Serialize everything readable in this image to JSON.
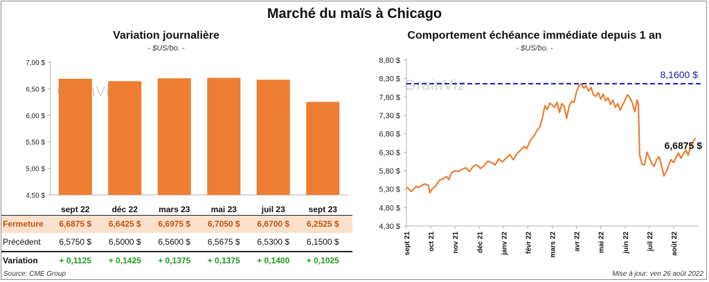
{
  "page_title": "Marché du maïs à Chicago",
  "watermark": "GrainViz",
  "source": "Source: CME Group",
  "updated": "Mise à jour: ven 26 août 2022",
  "chart_data": [
    {
      "type": "bar",
      "title": "Variation journalière",
      "subtitle": "- $US/bo. -",
      "categories": [
        "sept 22",
        "déc 22",
        "mars 23",
        "mai 23",
        "juil 23",
        "sept 23"
      ],
      "values": [
        6.6875,
        6.6425,
        6.6975,
        6.705,
        6.67,
        6.2525
      ],
      "ylim": [
        4.5,
        7.0
      ],
      "yticks": [
        "4,50 $",
        "5,00 $",
        "5,50 $",
        "6,00 $",
        "6,50 $",
        "7,00 $"
      ],
      "bar_color": "#ED7D31",
      "table": {
        "rows": [
          {
            "label": "Fermeture",
            "cells": [
              "6,6875  $",
              "6,6425  $",
              "6,6975  $",
              "6,7050  $",
              "6,6700  $",
              "6,2525  $"
            ]
          },
          {
            "label": "Précédent",
            "cells": [
              "6,5750  $",
              "6,5000  $",
              "6,5600  $",
              "6,5675  $",
              "6,5300  $",
              "6,1500  $"
            ]
          },
          {
            "label": "Variation",
            "cells": [
              "+ 0,1125",
              "+ 0,1425",
              "+ 0,1375",
              "+ 0,1375",
              "+ 0,1400",
              "+ 0,1025"
            ]
          }
        ]
      }
    },
    {
      "type": "line",
      "title": "Comportement  échéance immédiate depuis 1 an",
      "subtitle": "- $US/bo. -",
      "ylim": [
        4.3,
        8.8
      ],
      "yticks": [
        "4,30 $",
        "4,80 $",
        "5,30 $",
        "5,80 $",
        "6,30 $",
        "6,80 $",
        "7,30 $",
        "7,80 $",
        "8,30 $",
        "8,80 $"
      ],
      "xticks": [
        "sept 21",
        "oct 21",
        "nov 21",
        "déc 21",
        "janv 22",
        "févr 22",
        "mars 22",
        "avr 22",
        "mai 22",
        "juin 22",
        "juil 22",
        "août 22"
      ],
      "x_range": [
        0,
        12
      ],
      "line_color": "#ED7D31",
      "reference": {
        "value": 8.16,
        "label": "8,1600 $",
        "color": "#1a1aa8"
      },
      "last_label": "6,6875 $",
      "points": [
        [
          0.0,
          5.36
        ],
        [
          0.1,
          5.3
        ],
        [
          0.2,
          5.24
        ],
        [
          0.3,
          5.3
        ],
        [
          0.4,
          5.38
        ],
        [
          0.5,
          5.34
        ],
        [
          0.6,
          5.39
        ],
        [
          0.75,
          5.44
        ],
        [
          0.9,
          5.4
        ],
        [
          0.97,
          5.2
        ],
        [
          1.05,
          5.3
        ],
        [
          1.2,
          5.38
        ],
        [
          1.35,
          5.54
        ],
        [
          1.5,
          5.58
        ],
        [
          1.65,
          5.64
        ],
        [
          1.75,
          5.56
        ],
        [
          1.85,
          5.74
        ],
        [
          2.0,
          5.8
        ],
        [
          2.15,
          5.78
        ],
        [
          2.3,
          5.84
        ],
        [
          2.45,
          5.88
        ],
        [
          2.6,
          5.78
        ],
        [
          2.75,
          5.92
        ],
        [
          2.9,
          5.96
        ],
        [
          3.05,
          5.86
        ],
        [
          3.2,
          5.94
        ],
        [
          3.35,
          6.06
        ],
        [
          3.5,
          6.02
        ],
        [
          3.65,
          5.96
        ],
        [
          3.8,
          6.12
        ],
        [
          3.95,
          6.04
        ],
        [
          4.1,
          6.14
        ],
        [
          4.25,
          6.24
        ],
        [
          4.4,
          6.1
        ],
        [
          4.55,
          6.26
        ],
        [
          4.7,
          6.36
        ],
        [
          4.85,
          6.46
        ],
        [
          4.95,
          6.4
        ],
        [
          5.1,
          6.62
        ],
        [
          5.25,
          6.74
        ],
        [
          5.35,
          6.86
        ],
        [
          5.5,
          7.0
        ],
        [
          5.6,
          7.24
        ],
        [
          5.7,
          7.56
        ],
        [
          5.8,
          7.46
        ],
        [
          5.9,
          7.64
        ],
        [
          6.0,
          7.58
        ],
        [
          6.1,
          7.52
        ],
        [
          6.2,
          7.66
        ],
        [
          6.3,
          7.38
        ],
        [
          6.4,
          7.62
        ],
        [
          6.5,
          7.54
        ],
        [
          6.6,
          7.22
        ],
        [
          6.7,
          7.56
        ],
        [
          6.8,
          7.68
        ],
        [
          6.9,
          7.66
        ],
        [
          7.0,
          7.94
        ],
        [
          7.1,
          8.1
        ],
        [
          7.2,
          8.16
        ],
        [
          7.3,
          8.04
        ],
        [
          7.4,
          8.1
        ],
        [
          7.5,
          7.96
        ],
        [
          7.6,
          8.06
        ],
        [
          7.7,
          7.86
        ],
        [
          7.8,
          7.82
        ],
        [
          7.9,
          7.92
        ],
        [
          8.0,
          7.74
        ],
        [
          8.1,
          7.88
        ],
        [
          8.2,
          7.7
        ],
        [
          8.3,
          7.78
        ],
        [
          8.4,
          7.6
        ],
        [
          8.5,
          7.72
        ],
        [
          8.6,
          7.52
        ],
        [
          8.7,
          7.62
        ],
        [
          8.8,
          7.44
        ],
        [
          8.9,
          7.58
        ],
        [
          9.0,
          7.72
        ],
        [
          9.1,
          7.86
        ],
        [
          9.2,
          7.78
        ],
        [
          9.3,
          7.64
        ],
        [
          9.4,
          7.4
        ],
        [
          9.5,
          7.72
        ],
        [
          9.55,
          7.6
        ],
        [
          9.6,
          6.22
        ],
        [
          9.7,
          5.98
        ],
        [
          9.8,
          5.96
        ],
        [
          9.9,
          6.3
        ],
        [
          10.0,
          6.16
        ],
        [
          10.1,
          6.0
        ],
        [
          10.2,
          5.92
        ],
        [
          10.3,
          6.1
        ],
        [
          10.4,
          6.18
        ],
        [
          10.5,
          5.94
        ],
        [
          10.6,
          5.66
        ],
        [
          10.7,
          5.78
        ],
        [
          10.8,
          5.96
        ],
        [
          10.9,
          6.1
        ],
        [
          11.0,
          6.02
        ],
        [
          11.1,
          6.16
        ],
        [
          11.2,
          6.28
        ],
        [
          11.3,
          6.14
        ],
        [
          11.4,
          6.26
        ],
        [
          11.5,
          6.36
        ],
        [
          11.6,
          6.22
        ],
        [
          11.7,
          6.46
        ],
        [
          11.8,
          6.58
        ],
        [
          11.9,
          6.69
        ]
      ]
    }
  ]
}
